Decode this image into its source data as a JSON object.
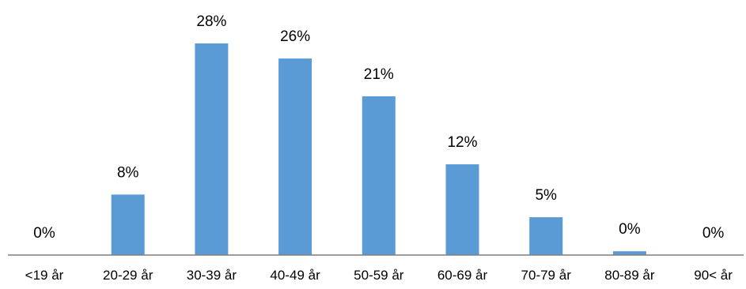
{
  "chart_data": {
    "type": "bar",
    "categories": [
      "<19 år",
      "20-29 år",
      "30-39 år",
      "40-49 år",
      "50-59 år",
      "60-69 år",
      "70-79 år",
      "80-89 år",
      "90< år"
    ],
    "values": [
      0,
      8,
      28,
      26,
      21,
      12,
      5,
      0.5,
      0
    ],
    "data_labels": [
      "0%",
      "8%",
      "28%",
      "26%",
      "21%",
      "12%",
      "5%",
      "0%",
      "0%"
    ],
    "title": "",
    "xlabel": "",
    "ylabel": "",
    "ylim": [
      0,
      30
    ],
    "grid": false,
    "legend": "none",
    "colors": {
      "bar": "#5B9BD5",
      "axis": "#7F7F7F",
      "text": "#000000"
    }
  }
}
